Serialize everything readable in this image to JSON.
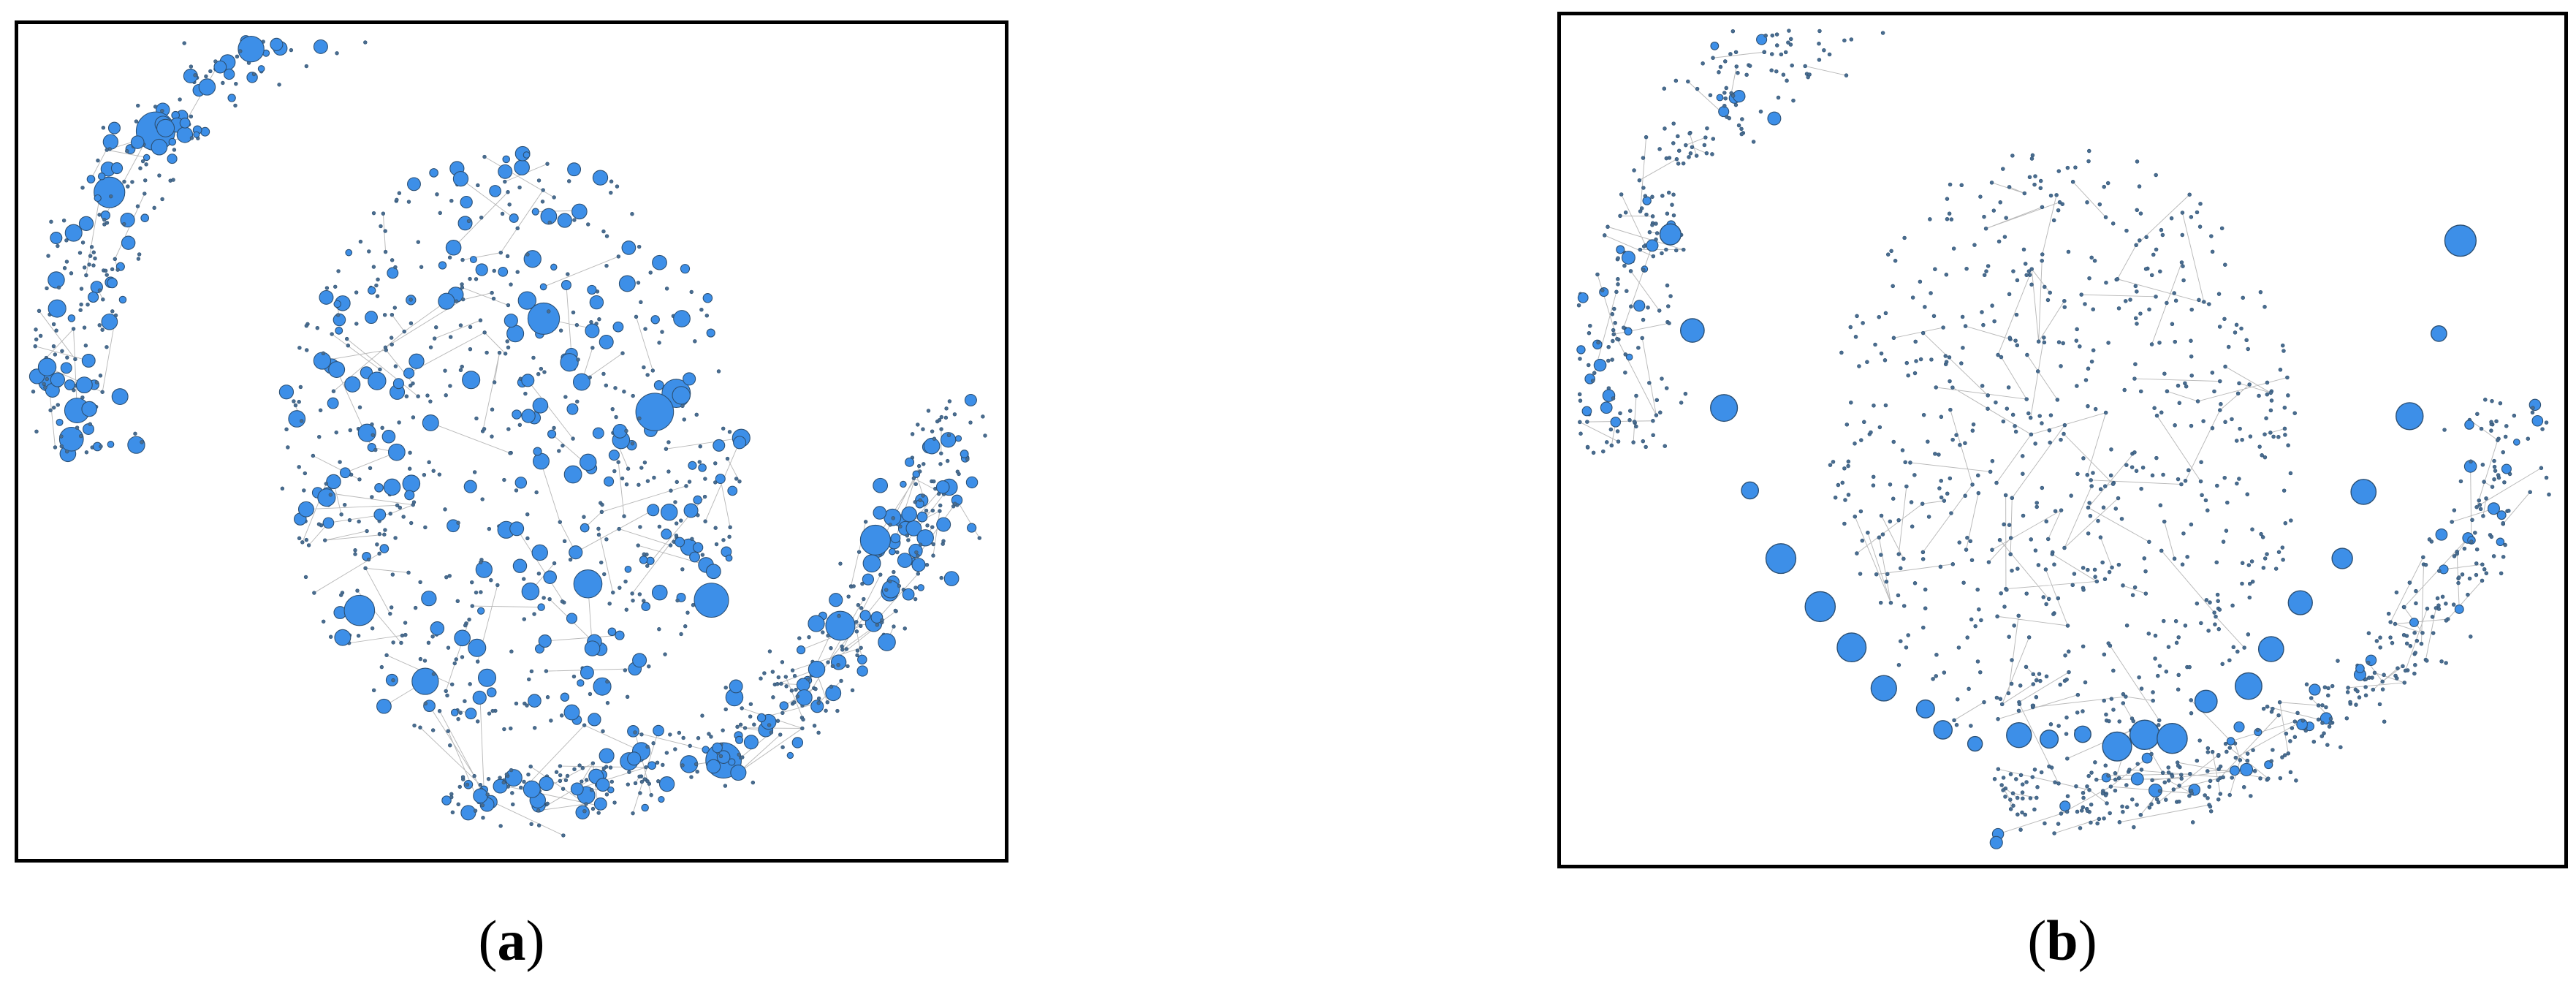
{
  "panels": [
    {
      "id": "a",
      "label": "a",
      "open": "(",
      "close": ")"
    },
    {
      "id": "b",
      "label": "b",
      "open": "(",
      "close": ")"
    }
  ],
  "colors": {
    "node_fill": "#3d8fe8",
    "node_stroke": "#2b4f73",
    "edge": "#b9b9b9",
    "border": "#000000"
  }
}
